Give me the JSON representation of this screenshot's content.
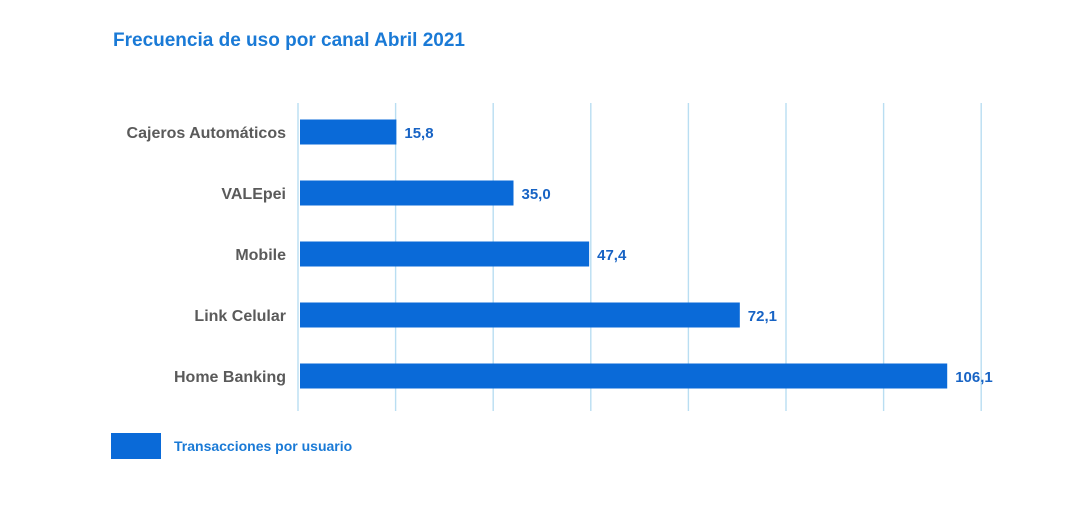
{
  "colors": {
    "bar": "#0a6ad8",
    "grid": "#b9def2",
    "title": "#1a7ad6",
    "value_label": "#1763c4",
    "category_label": "#5a5a5a"
  },
  "chart_data": {
    "type": "bar",
    "orientation": "horizontal",
    "title": "Frecuencia de uso por canal Abril 2021",
    "categories": [
      "Cajeros Automáticos",
      "VALEpei",
      "Mobile",
      "Link Celular",
      "Home Banking"
    ],
    "series": [
      {
        "name": "Transacciones por usuario",
        "values": [
          15.8,
          35.0,
          47.4,
          72.1,
          106.1
        ],
        "labels": [
          "15,8",
          "35,0",
          "47,4",
          "72,1",
          "106,1"
        ]
      }
    ],
    "xlim": [
      0,
      120
    ],
    "grid": true,
    "legend": "bottom-left"
  }
}
